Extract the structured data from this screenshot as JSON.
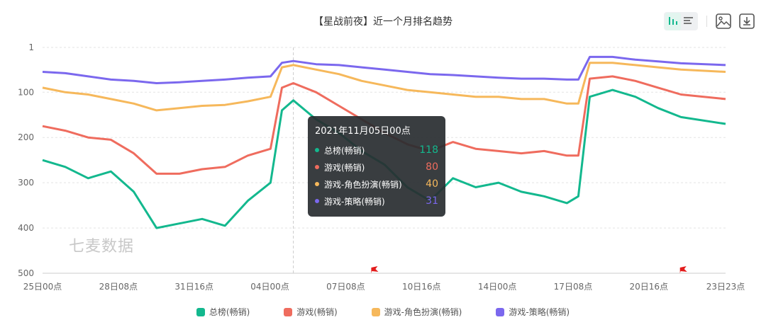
{
  "title": "【星战前夜】近一个月排名趋势",
  "watermark": "七麦数据",
  "toolbar": {
    "icons": [
      "bar-chart-icon",
      "list-icon",
      "image-icon",
      "download-icon"
    ]
  },
  "tooltip": {
    "title": "2021年11月05日00点",
    "rows": [
      {
        "name": "总榜(畅销)",
        "value": "118"
      },
      {
        "name": "游戏(畅销)",
        "value": "80"
      },
      {
        "name": "游戏-角色扮演(畅销)",
        "value": "40"
      },
      {
        "name": "游戏-策略(畅销)",
        "value": "31"
      }
    ]
  },
  "chart_data": {
    "type": "line",
    "title": "【星战前夜】近一个月排名趋势",
    "y_inverted": true,
    "ylim": [
      1,
      500
    ],
    "yticks": [
      1,
      100,
      200,
      300,
      400,
      500
    ],
    "xlim": [
      "2021-10-25 00:00",
      "2021-11-23 23:00"
    ],
    "xtick_labels": [
      "25日00点",
      "28日08点",
      "31日16点",
      "04日00点",
      "07日08点",
      "10日16点",
      "14日00点",
      "17日08点",
      "20日16点",
      "23日23点"
    ],
    "grid": "horizontal dashed",
    "legend": "bottom",
    "markers": [
      {
        "type": "flag",
        "x": "2021-11-08 10:00"
      },
      {
        "type": "flag",
        "x": "2021-11-21 23:00"
      }
    ],
    "crosshair_x": "2021-11-05 00:00",
    "x": [
      "2021-10-25 00:00",
      "2021-10-26 00:00",
      "2021-10-27 00:00",
      "2021-10-28 00:00",
      "2021-10-29 00:00",
      "2021-10-30 00:00",
      "2021-10-31 00:00",
      "2021-11-01 00:00",
      "2021-11-02 00:00",
      "2021-11-03 00:00",
      "2021-11-04 00:00",
      "2021-11-04 12:00",
      "2021-11-05 00:00",
      "2021-11-06 00:00",
      "2021-11-07 00:00",
      "2021-11-08 00:00",
      "2021-11-09 00:00",
      "2021-11-10 00:00",
      "2021-11-11 00:00",
      "2021-11-12 00:00",
      "2021-11-13 00:00",
      "2021-11-14 00:00",
      "2021-11-15 00:00",
      "2021-11-16 00:00",
      "2021-11-17 00:00",
      "2021-11-17 12:00",
      "2021-11-18 00:00",
      "2021-11-19 00:00",
      "2021-11-20 00:00",
      "2021-11-21 00:00",
      "2021-11-22 00:00",
      "2021-11-23 23:00"
    ],
    "series": [
      {
        "name": "总榜(畅销)",
        "color": "#13b88e",
        "values": [
          250,
          265,
          290,
          275,
          320,
          400,
          390,
          380,
          395,
          340,
          300,
          140,
          118,
          160,
          190,
          230,
          260,
          310,
          340,
          290,
          310,
          300,
          320,
          330,
          345,
          330,
          110,
          95,
          110,
          135,
          155,
          170
        ]
      },
      {
        "name": "游戏(畅销)",
        "color": "#ef6c5e",
        "values": [
          175,
          185,
          200,
          205,
          235,
          280,
          280,
          270,
          265,
          240,
          225,
          90,
          80,
          100,
          130,
          160,
          190,
          215,
          230,
          210,
          225,
          230,
          235,
          230,
          240,
          240,
          70,
          65,
          75,
          90,
          105,
          115
        ]
      },
      {
        "name": "游戏-角色扮演(畅销)",
        "color": "#f6b85b",
        "values": [
          90,
          100,
          105,
          115,
          125,
          140,
          135,
          130,
          128,
          120,
          110,
          45,
          40,
          50,
          60,
          75,
          85,
          95,
          100,
          105,
          110,
          110,
          115,
          115,
          125,
          125,
          35,
          35,
          40,
          45,
          50,
          55
        ]
      },
      {
        "name": "游戏-策略(畅销)",
        "color": "#7b68ee",
        "values": [
          55,
          58,
          65,
          72,
          75,
          80,
          78,
          75,
          72,
          68,
          65,
          35,
          31,
          38,
          40,
          45,
          50,
          55,
          60,
          62,
          65,
          68,
          70,
          70,
          72,
          72,
          22,
          22,
          28,
          32,
          36,
          40
        ]
      }
    ]
  }
}
